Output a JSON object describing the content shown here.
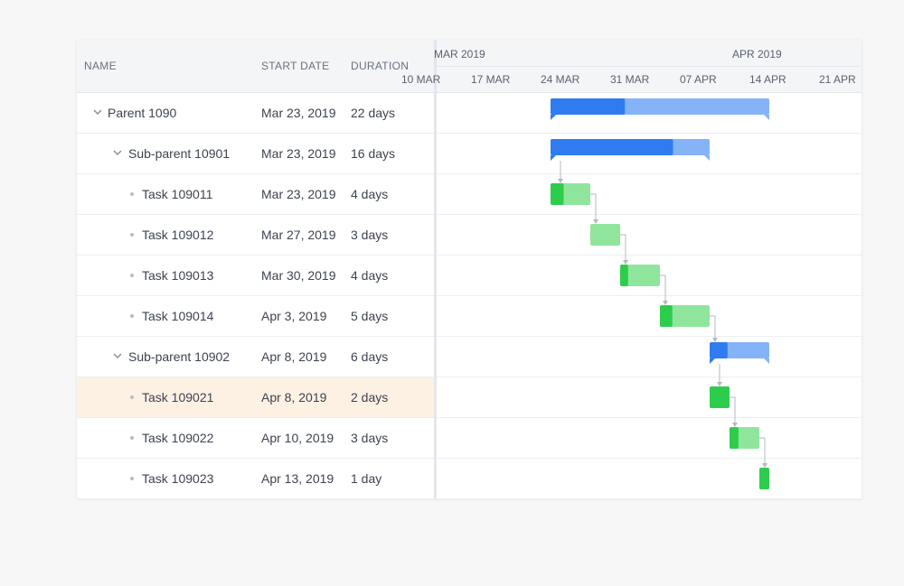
{
  "header": {
    "name_label": "NAME",
    "start_label": "START DATE",
    "duration_label": "DURATION"
  },
  "rows": [
    {
      "name": "Parent 1090",
      "start": "Mar 23, 2019",
      "duration": "22 days",
      "level": 0,
      "type": "parent"
    },
    {
      "name": "Sub-parent 10901",
      "start": "Mar 23, 2019",
      "duration": "16 days",
      "level": 1,
      "type": "parent"
    },
    {
      "name": "Task 109011",
      "start": "Mar 23, 2019",
      "duration": "4 days",
      "level": 2,
      "type": "task"
    },
    {
      "name": "Task 109012",
      "start": "Mar 27, 2019",
      "duration": "3 days",
      "level": 2,
      "type": "task"
    },
    {
      "name": "Task 109013",
      "start": "Mar 30, 2019",
      "duration": "4 days",
      "level": 2,
      "type": "task"
    },
    {
      "name": "Task 109014",
      "start": "Apr 3, 2019",
      "duration": "5 days",
      "level": 2,
      "type": "task"
    },
    {
      "name": "Sub-parent 10902",
      "start": "Apr 8, 2019",
      "duration": "6 days",
      "level": 1,
      "type": "parent"
    },
    {
      "name": "Task 109021",
      "start": "Apr 8, 2019",
      "duration": "2 days",
      "level": 2,
      "type": "task",
      "selected": true
    },
    {
      "name": "Task 109022",
      "start": "Apr 10, 2019",
      "duration": "3 days",
      "level": 2,
      "type": "task"
    },
    {
      "name": "Task 109023",
      "start": "Apr 13, 2019",
      "duration": "1 day",
      "level": 2,
      "type": "task"
    }
  ],
  "timeline": {
    "months": [
      {
        "label": "MAR 2019",
        "start": "2019-03-01"
      },
      {
        "label": "APR 2019",
        "start": "2019-04-01"
      }
    ],
    "weeks": [
      {
        "label": "10 MAR",
        "date": "2019-03-10"
      },
      {
        "label": "17 MAR",
        "date": "2019-03-17"
      },
      {
        "label": "24 MAR",
        "date": "2019-03-24"
      },
      {
        "label": "31 MAR",
        "date": "2019-03-31"
      },
      {
        "label": "07 APR",
        "date": "2019-04-07"
      },
      {
        "label": "14 APR",
        "date": "2019-04-14"
      },
      {
        "label": "21 APR",
        "date": "2019-04-21"
      }
    ]
  },
  "bars": [
    {
      "row": 0,
      "start": "2019-03-23",
      "days": 22,
      "progress": 0.34,
      "kind": "summary"
    },
    {
      "row": 1,
      "start": "2019-03-23",
      "days": 16,
      "progress": 0.77,
      "kind": "summary"
    },
    {
      "row": 2,
      "start": "2019-03-23",
      "days": 4,
      "progress": 0.33,
      "kind": "task"
    },
    {
      "row": 3,
      "start": "2019-03-27",
      "days": 3,
      "progress": 0.0,
      "kind": "task"
    },
    {
      "row": 4,
      "start": "2019-03-30",
      "days": 4,
      "progress": 0.2,
      "kind": "task"
    },
    {
      "row": 5,
      "start": "2019-04-03",
      "days": 5,
      "progress": 0.25,
      "kind": "task"
    },
    {
      "row": 6,
      "start": "2019-04-08",
      "days": 6,
      "progress": 0.3,
      "kind": "summary"
    },
    {
      "row": 7,
      "start": "2019-04-08",
      "days": 2,
      "progress": 1.0,
      "kind": "task"
    },
    {
      "row": 8,
      "start": "2019-04-10",
      "days": 3,
      "progress": 0.3,
      "kind": "task"
    },
    {
      "row": 9,
      "start": "2019-04-13",
      "days": 1,
      "progress": 1.0,
      "kind": "task"
    }
  ],
  "dependencies": [
    {
      "from": 1,
      "to": 2,
      "type": "start"
    },
    {
      "from": 2,
      "to": 3,
      "type": "finish"
    },
    {
      "from": 3,
      "to": 4,
      "type": "finish"
    },
    {
      "from": 4,
      "to": 5,
      "type": "finish"
    },
    {
      "from": 5,
      "to": 6,
      "type": "finish"
    },
    {
      "from": 6,
      "to": 7,
      "type": "start"
    },
    {
      "from": 7,
      "to": 8,
      "type": "finish"
    },
    {
      "from": 8,
      "to": 9,
      "type": "finish"
    }
  ],
  "colors": {
    "summary_done": "#2f7cf0",
    "summary_rest": "#85b3f7",
    "task_done": "#2ecc4c",
    "task_rest": "#8fe59c",
    "link": "#b4b8bf",
    "selected_row": "#fdf1e4"
  }
}
